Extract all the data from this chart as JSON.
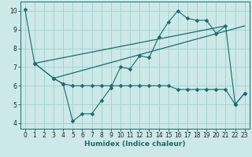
{
  "xlabel": "Humidex (Indice chaleur)",
  "bg_color": "#cde8e8",
  "grid_color": "#9ecfcf",
  "line_color": "#1a6b6b",
  "xlim": [
    -0.5,
    23.5
  ],
  "ylim": [
    3.7,
    10.5
  ],
  "xticks": [
    0,
    1,
    2,
    3,
    4,
    5,
    6,
    7,
    8,
    9,
    10,
    11,
    12,
    13,
    14,
    15,
    16,
    17,
    18,
    19,
    20,
    21,
    22,
    23
  ],
  "yticks": [
    4,
    5,
    6,
    7,
    8,
    9,
    10
  ],
  "line1_x": [
    0,
    1,
    3,
    4,
    5,
    6,
    7,
    8,
    9,
    10,
    11,
    12,
    13,
    14,
    15,
    16,
    17,
    18,
    19,
    20,
    21,
    22,
    23
  ],
  "line1_y": [
    10.1,
    7.2,
    6.4,
    6.1,
    4.1,
    4.5,
    4.5,
    5.2,
    5.9,
    7.0,
    6.9,
    7.6,
    7.5,
    8.6,
    9.4,
    10.0,
    9.6,
    9.5,
    9.5,
    8.8,
    9.2,
    5.0,
    5.6
  ],
  "line2_x": [
    1,
    3,
    4,
    5,
    6,
    7,
    8,
    9,
    10,
    11,
    12,
    13,
    14,
    15,
    16,
    17,
    18,
    19,
    20,
    21,
    22,
    23
  ],
  "line2_y": [
    7.2,
    6.4,
    6.1,
    6.0,
    6.0,
    6.0,
    6.0,
    6.0,
    6.0,
    6.0,
    6.0,
    6.0,
    6.0,
    6.0,
    5.8,
    5.8,
    5.8,
    5.8,
    5.8,
    5.8,
    5.0,
    5.6
  ],
  "line3_x": [
    1,
    21
  ],
  "line3_y": [
    7.2,
    9.2
  ],
  "line4_x": [
    3,
    23
  ],
  "line4_y": [
    6.4,
    9.2
  ],
  "marker_size": 2.5,
  "tick_fontsize": 5.5,
  "xlabel_fontsize": 6.5
}
